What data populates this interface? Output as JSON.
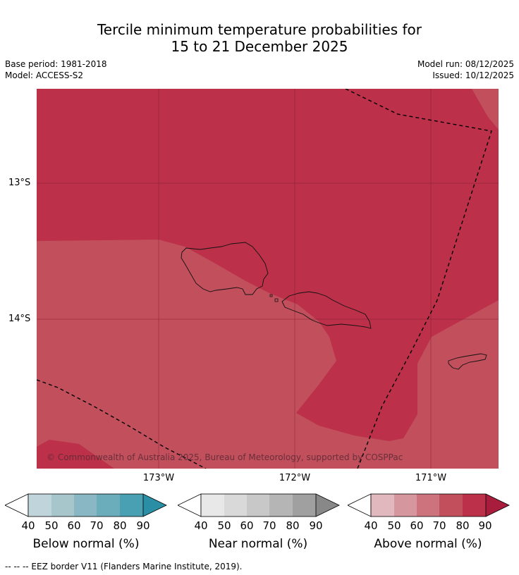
{
  "title_line1": "Tercile minimum temperature probabilities for",
  "title_line2": "15 to 21 December 2025",
  "base_period": "Base period: 1981-2018",
  "model": "Model: ACCESS-S2",
  "model_run": "Model run: 08/12/2025",
  "issued": "Issued: 10/12/2025",
  "lat_labels": [
    "13°S",
    "14°S"
  ],
  "lon_labels": [
    "173°W",
    "172°W",
    "171°W"
  ],
  "copyright": "© Commonwealth of Australia 2025, Bureau of Meteorology, supported by COSPPac",
  "colorbars": [
    {
      "label": "Below normal (%)",
      "ticks": [
        "40",
        "50",
        "60",
        "70",
        "80",
        "90"
      ],
      "colors": [
        "#c0d5db",
        "#a6c6cc",
        "#89b7c3",
        "#6badbb",
        "#48a0b2",
        "#2a8fa4"
      ]
    },
    {
      "label": "Near normal (%)",
      "ticks": [
        "40",
        "50",
        "60",
        "70",
        "80",
        "90"
      ],
      "colors": [
        "#e8e8e8",
        "#d9d9d9",
        "#c8c8c8",
        "#b5b5b5",
        "#a0a0a0",
        "#888888"
      ]
    },
    {
      "label": "Above normal (%)",
      "ticks": [
        "40",
        "50",
        "60",
        "70",
        "80",
        "90"
      ],
      "colors": [
        "#e2b8bf",
        "#d5969e",
        "#cd737d",
        "#c14f5c",
        "#bc3149",
        "#a91d3c"
      ]
    }
  ],
  "map_colors": {
    "above_80": "#bc3149",
    "above_70": "#c14f5c"
  },
  "footer": "-- -- -- EEZ border V11 (Flanders Marine Institute, 2019)."
}
